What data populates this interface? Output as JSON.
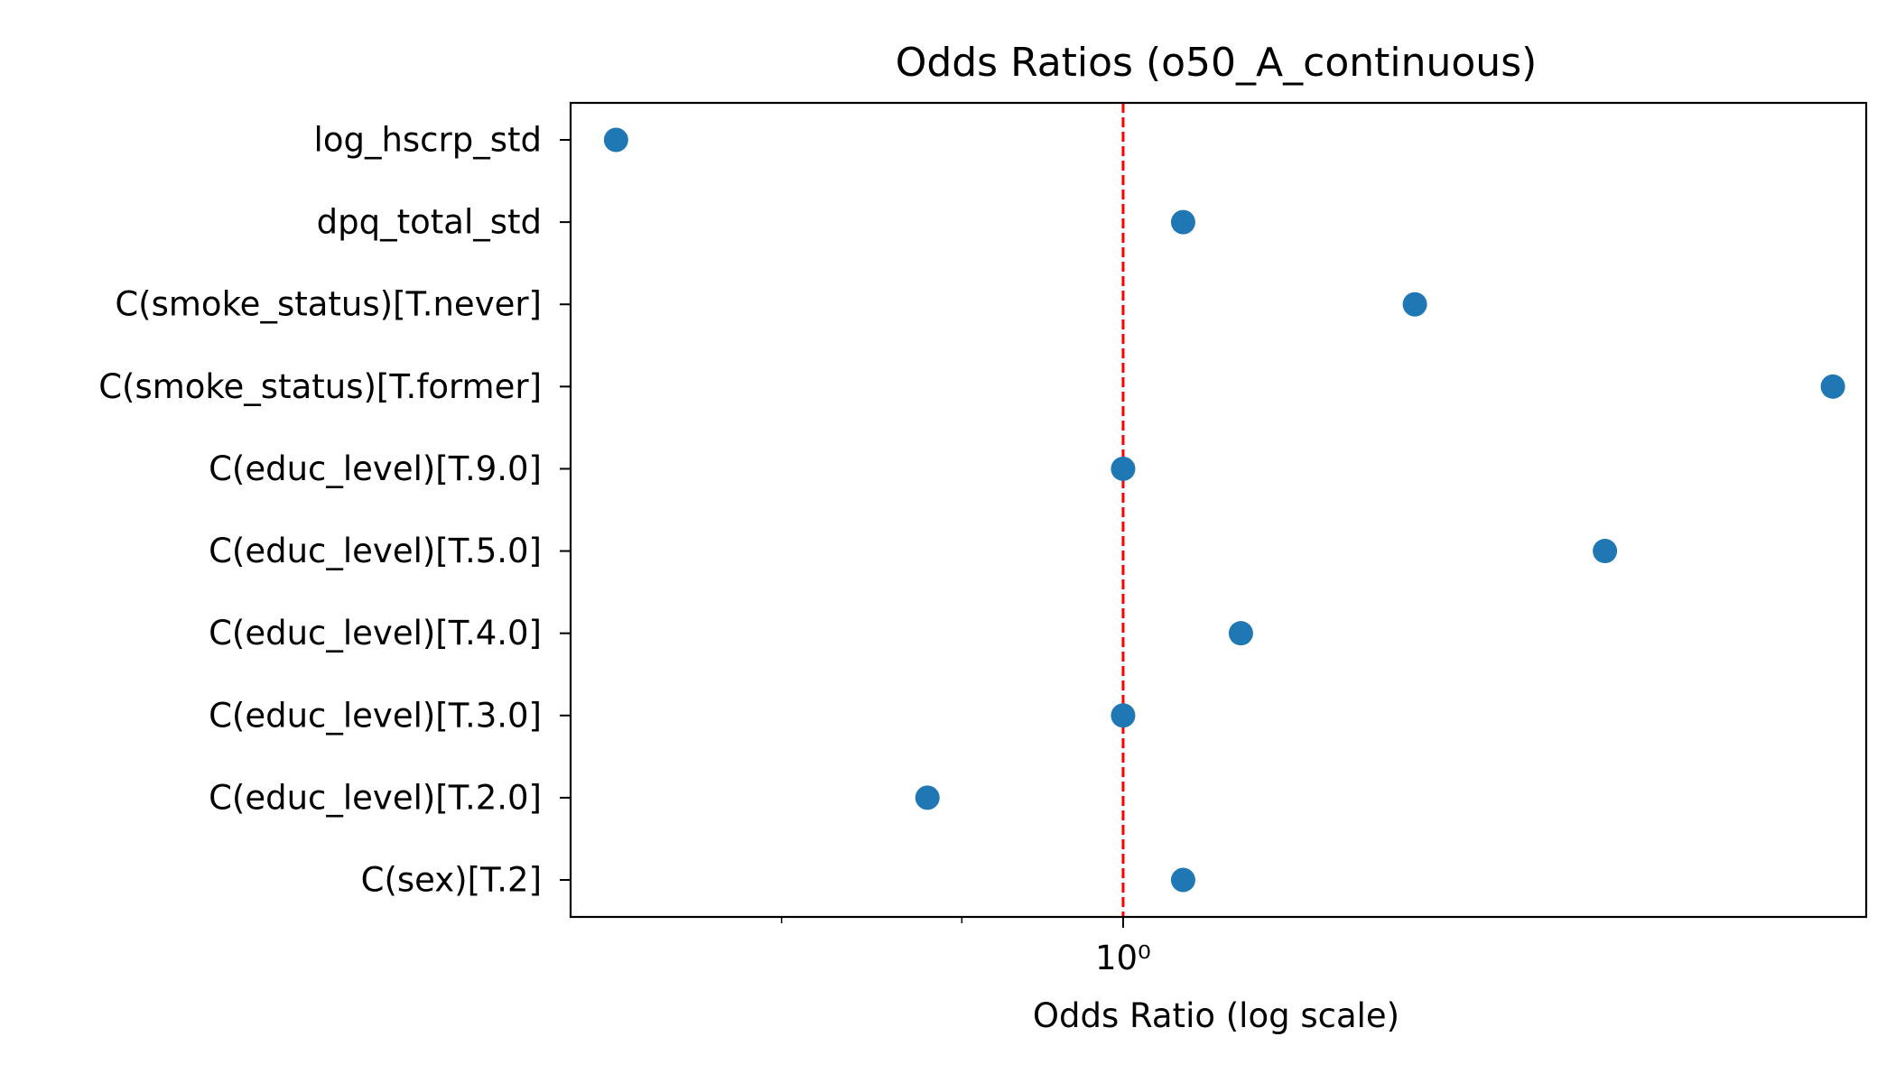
{
  "chart_data": {
    "type": "scatter",
    "title": "Odds Ratios (o50_A_continuous)",
    "xlabel": "Odds Ratio (log scale)",
    "ylabel": "",
    "x_scale": "log",
    "xlim": [
      0.697,
      1.625
    ],
    "x_major_ticks": [
      {
        "value": 1,
        "label": "10⁰"
      }
    ],
    "x_minor_ticks": [
      0.8,
      0.9
    ],
    "reference_line": {
      "x": 1,
      "color": "#ff0000",
      "style": "dashed"
    },
    "grid": false,
    "point_color": "#1f77b4",
    "categories": [
      "C(sex)[T.2]",
      "C(educ_level)[T.2.0]",
      "C(educ_level)[T.3.0]",
      "C(educ_level)[T.4.0]",
      "C(educ_level)[T.5.0]",
      "C(educ_level)[T.9.0]",
      "C(smoke_status)[T.former]",
      "C(smoke_status)[T.never]",
      "dpq_total_std",
      "log_hscrp_std"
    ],
    "values": [
      1.04,
      0.88,
      1.0,
      1.08,
      1.37,
      1.0,
      1.59,
      1.21,
      1.04,
      0.718
    ]
  }
}
